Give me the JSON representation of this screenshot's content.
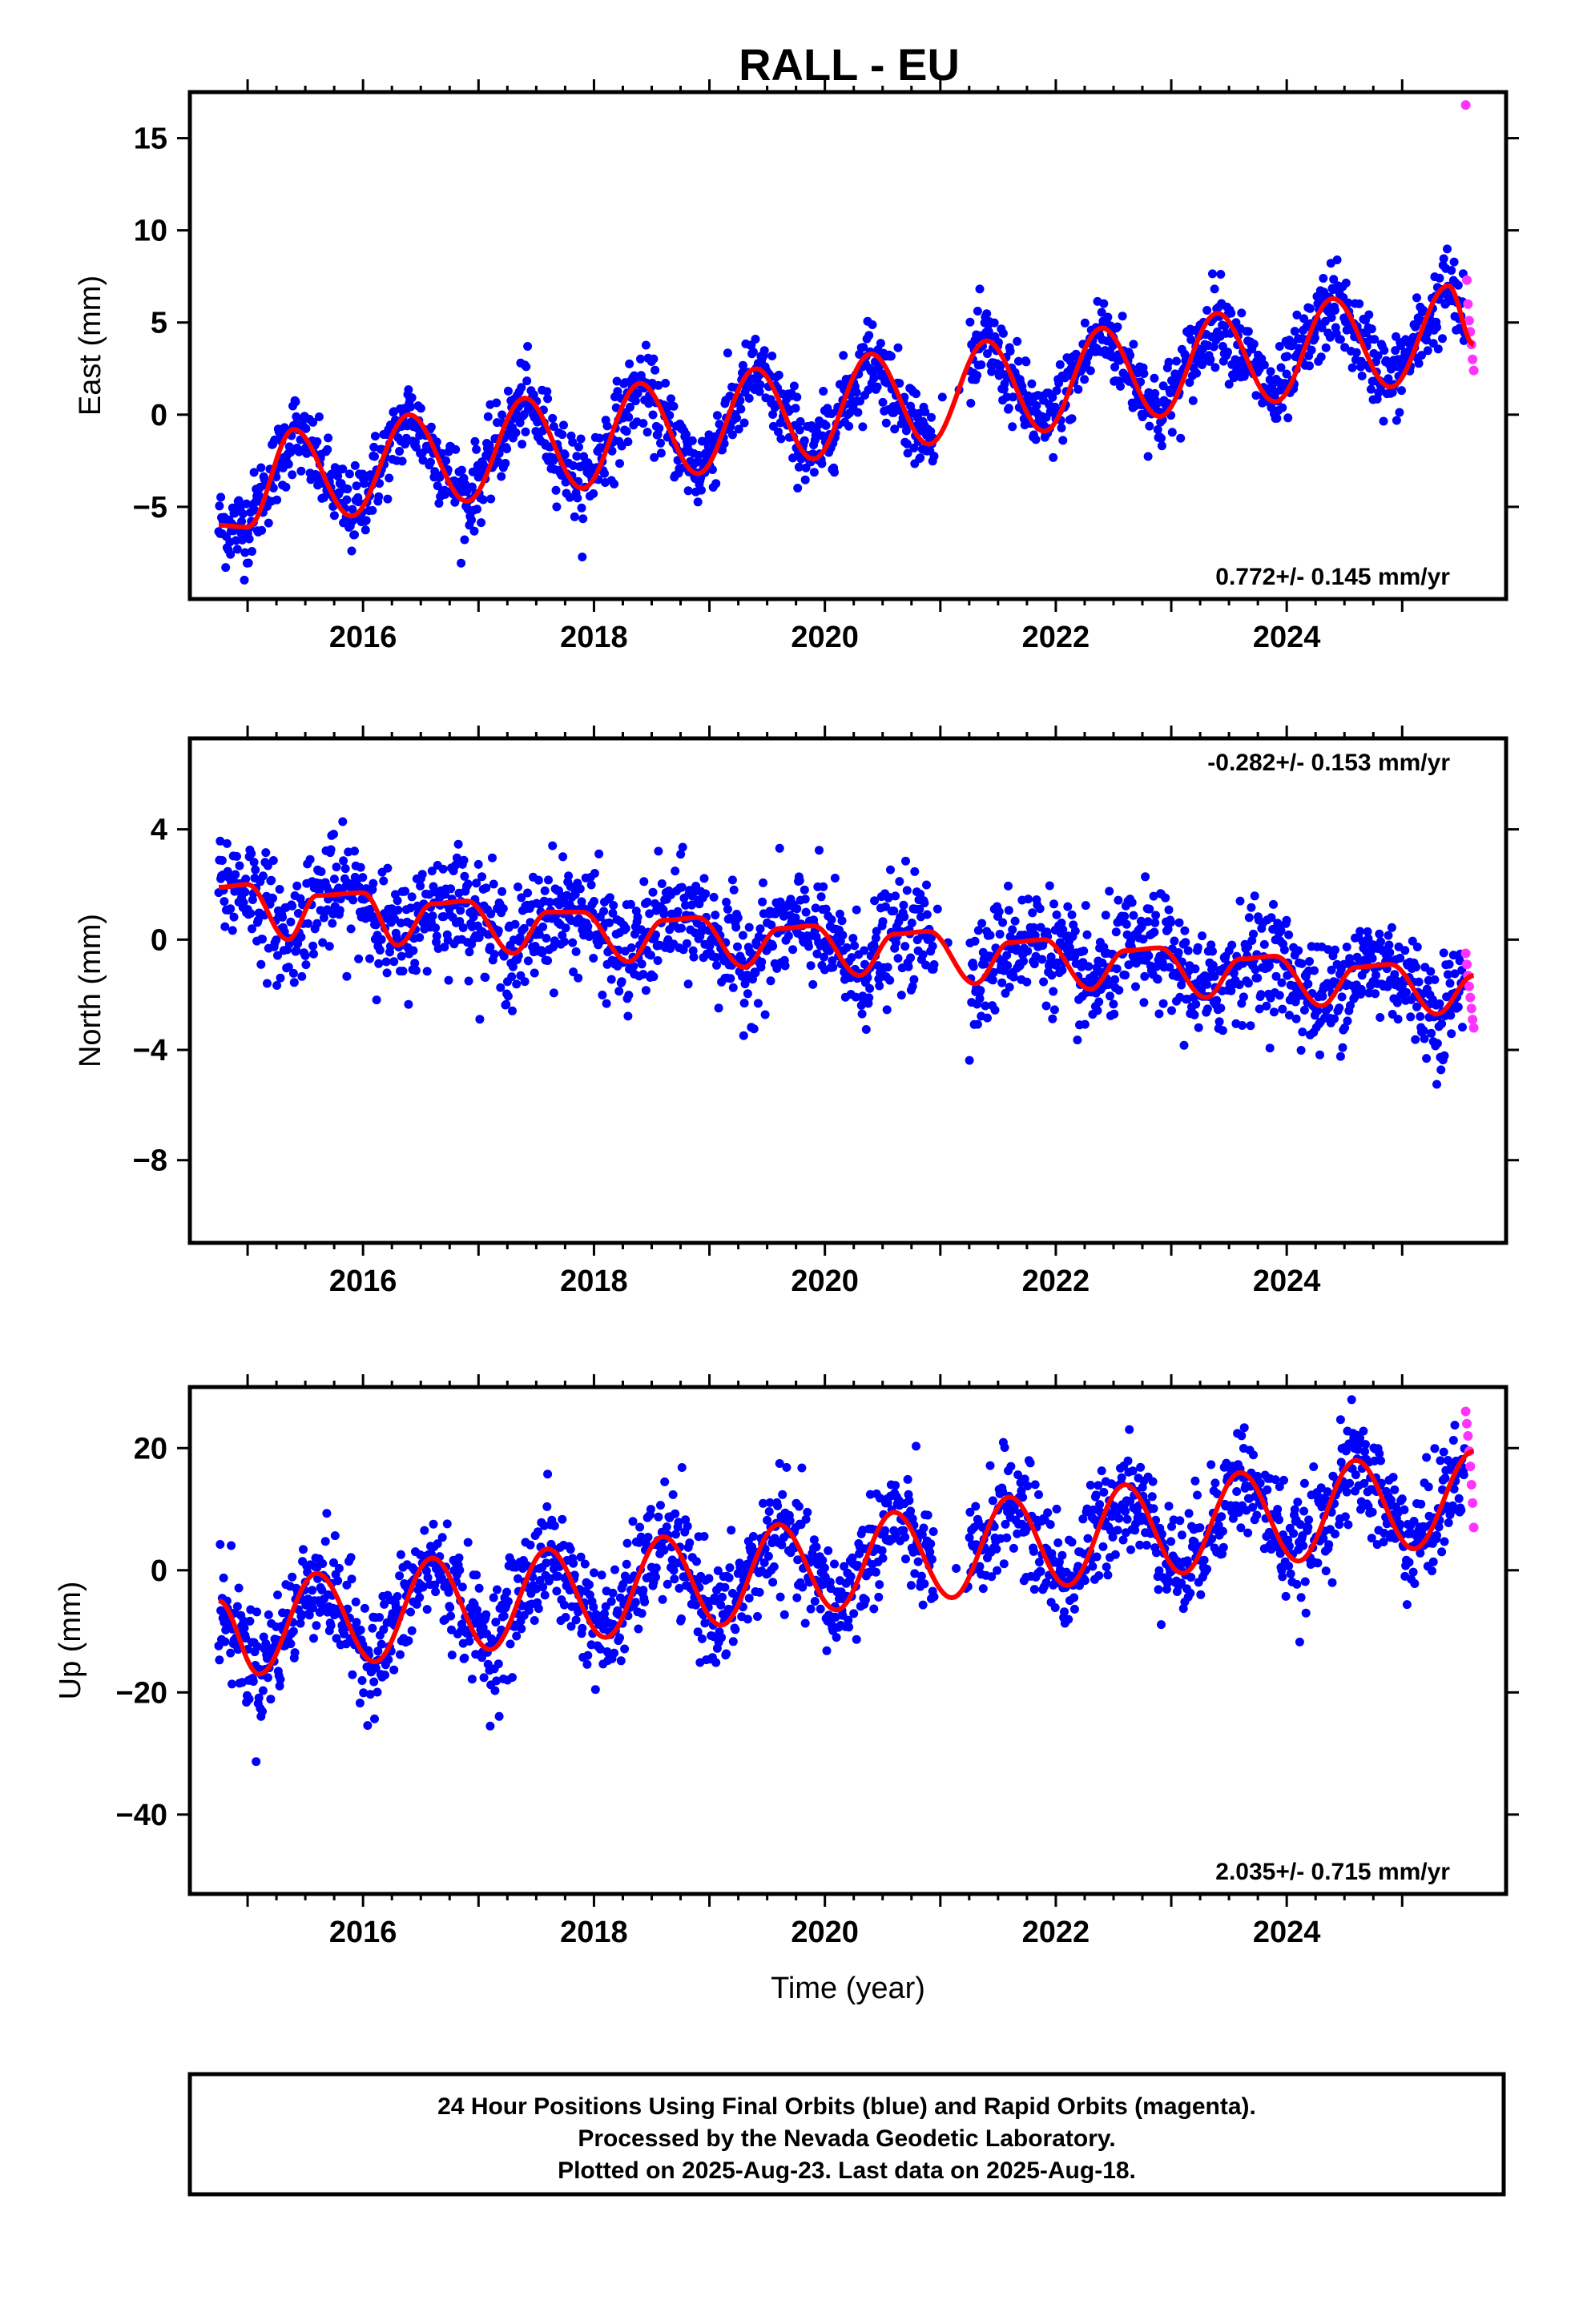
{
  "title": "RALL - EU",
  "footer": {
    "line1": "24 Hour Positions Using Final Orbits (blue) and Rapid Orbits (magenta).",
    "line2": "Processed by the Nevada Geodetic Laboratory.",
    "line3": "Plotted on 2025-Aug-23. Last data on 2025-Aug-18."
  },
  "colors": {
    "final": "#0000ff",
    "rapid": "#ff33ff",
    "model": "#ff0000"
  },
  "chart_data": [
    {
      "type": "scatter",
      "ylabel": "East (mm)",
      "xlim": [
        2014.5,
        2025.9
      ],
      "ylim": [
        -10,
        17.5
      ],
      "xticks": [
        2016,
        2018,
        2020,
        2022,
        2024
      ],
      "yticks": [
        -5,
        0,
        5,
        10,
        15
      ],
      "rate_label": "0.772+/- 0.145 mm/yr",
      "rate_position": "bottom-right",
      "model": {
        "x": [
          2014.75,
          2015.0,
          2015.4,
          2015.9,
          2016.4,
          2016.9,
          2017.4,
          2017.9,
          2018.4,
          2018.9,
          2019.4,
          2019.9,
          2020.4,
          2020.9,
          2021.4,
          2021.9,
          2022.4,
          2022.9,
          2023.4,
          2023.9,
          2024.4,
          2024.9,
          2025.4,
          2025.62
        ],
        "y": [
          -6.0,
          -6.1,
          -0.8,
          -5.5,
          0.0,
          -4.7,
          0.9,
          -4.0,
          1.7,
          -3.2,
          2.5,
          -2.4,
          3.3,
          -1.6,
          4.0,
          -0.9,
          4.7,
          -0.1,
          5.5,
          0.7,
          6.3,
          1.5,
          7.0,
          3.8
        ]
      },
      "rapid": {
        "x": [
          2025.55,
          2025.56,
          2025.57,
          2025.58,
          2025.59,
          2025.6,
          2025.61,
          2025.62
        ],
        "y": [
          16.8,
          7.3,
          6.0,
          5.1,
          4.5,
          3.8,
          3.0,
          2.4
        ]
      }
    },
    {
      "type": "scatter",
      "ylabel": "North (mm)",
      "xlim": [
        2014.5,
        2025.9
      ],
      "ylim": [
        -11,
        7.3
      ],
      "xticks": [
        2016,
        2018,
        2020,
        2022,
        2024
      ],
      "yticks": [
        -8,
        -4,
        0,
        4
      ],
      "rate_label": "-0.282+/- 0.153 mm/yr",
      "rate_position": "top-right",
      "model": {
        "x": [
          2014.75,
          2015.0,
          2015.35,
          2015.6,
          2016.0,
          2016.3,
          2016.6,
          2016.9,
          2017.3,
          2017.6,
          2017.9,
          2018.3,
          2018.6,
          2018.9,
          2019.3,
          2019.6,
          2019.9,
          2020.3,
          2020.6,
          2020.9,
          2021.3,
          2021.6,
          2021.9,
          2022.3,
          2022.6,
          2022.9,
          2023.3,
          2023.6,
          2023.9,
          2024.3,
          2024.6,
          2024.9,
          2025.3,
          2025.62
        ],
        "y": [
          1.9,
          2.0,
          0.0,
          1.6,
          1.7,
          -0.2,
          1.3,
          1.4,
          -0.5,
          1.0,
          1.0,
          -0.8,
          0.7,
          0.8,
          -1.0,
          0.4,
          0.5,
          -1.3,
          0.2,
          0.3,
          -1.6,
          -0.1,
          0.0,
          -1.8,
          -0.4,
          -0.3,
          -2.1,
          -0.7,
          -0.6,
          -2.4,
          -1.0,
          -0.9,
          -2.7,
          -1.3
        ]
      },
      "rapid": {
        "x": [
          2025.55,
          2025.56,
          2025.57,
          2025.58,
          2025.59,
          2025.6,
          2025.61,
          2025.62
        ],
        "y": [
          -0.5,
          -0.9,
          -1.3,
          -1.7,
          -2.1,
          -2.5,
          -2.9,
          -3.2
        ]
      }
    },
    {
      "type": "scatter",
      "ylabel": "Up (mm)",
      "xlabel": "Time (year)",
      "xlim": [
        2014.5,
        2025.9
      ],
      "ylim": [
        -53,
        30
      ],
      "xticks": [
        2016,
        2018,
        2020,
        2022,
        2024
      ],
      "yticks": [
        -40,
        -20,
        0,
        20
      ],
      "rate_label": "2.035+/- 0.715 mm/yr",
      "rate_position": "bottom-right",
      "model": {
        "x": [
          2014.75,
          2015.1,
          2015.6,
          2016.1,
          2016.6,
          2017.1,
          2017.6,
          2018.1,
          2018.6,
          2019.1,
          2019.6,
          2020.1,
          2020.6,
          2021.1,
          2021.6,
          2022.1,
          2022.6,
          2023.1,
          2023.6,
          2024.1,
          2024.6,
          2025.1,
          2025.62
        ],
        "y": [
          -5.0,
          -17.0,
          -0.5,
          -15.0,
          2.0,
          -13.0,
          3.5,
          -11.0,
          5.5,
          -9.0,
          7.5,
          -6.5,
          9.5,
          -4.5,
          12.0,
          -2.5,
          14.0,
          -0.5,
          16.0,
          1.5,
          18.0,
          3.5,
          19.5
        ]
      },
      "rapid": {
        "x": [
          2025.55,
          2025.56,
          2025.57,
          2025.58,
          2025.59,
          2025.6,
          2025.61,
          2025.62
        ],
        "y": [
          26.0,
          24.0,
          22.0,
          19.5,
          17.0,
          14.0,
          11.0,
          7.0
        ]
      }
    }
  ]
}
